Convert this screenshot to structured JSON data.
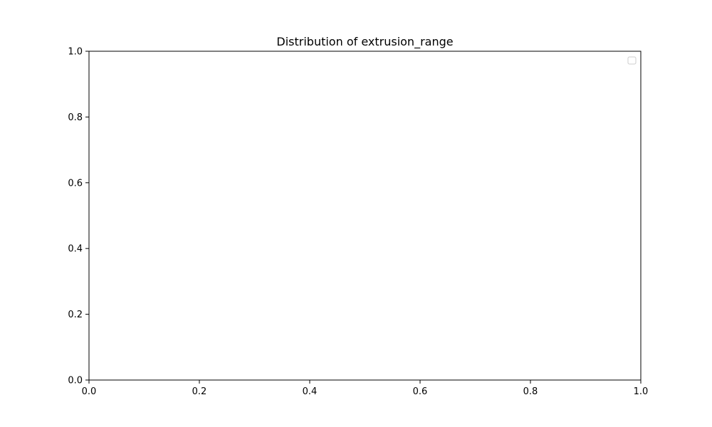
{
  "chart_data": {
    "type": "bar",
    "title": "Distribution of extrusion_range",
    "xlabel": "",
    "ylabel": "",
    "xlim": [
      0.0,
      1.0
    ],
    "ylim": [
      0.0,
      1.0
    ],
    "x_ticks": [
      "0.0",
      "0.2",
      "0.4",
      "0.6",
      "0.8",
      "1.0"
    ],
    "y_ticks": [
      "0.0",
      "0.2",
      "0.4",
      "0.6",
      "0.8",
      "1.0"
    ],
    "series": [],
    "grid": false,
    "legend": {
      "placement": "top-right",
      "entries": []
    }
  }
}
